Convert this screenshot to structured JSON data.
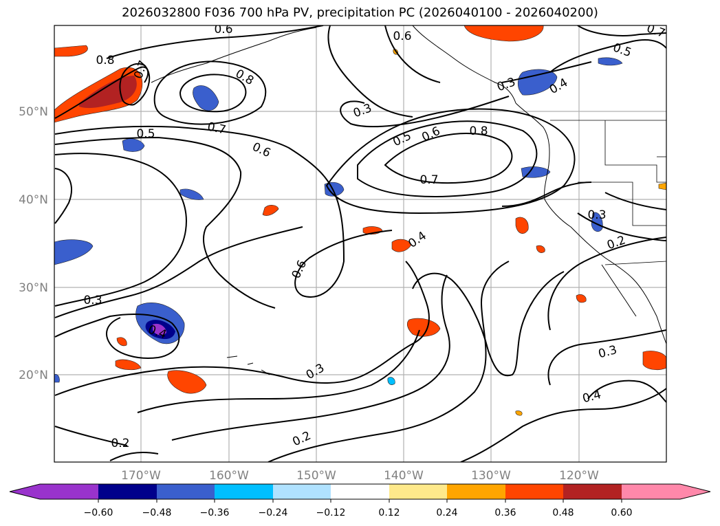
{
  "title": "2026032800 F036 700 hPa PV, precipitation PC (2026040100 - 2026040200)",
  "lat_labels": [
    "50°N",
    "40°N",
    "30°N",
    "20°N"
  ],
  "lon_labels": [
    "170°W",
    "160°W",
    "150°W",
    "140°W",
    "130°W",
    "120°W"
  ],
  "contour_labels": [
    "0.8",
    "0.7",
    "0.6",
    "0.8",
    "0.5",
    "0.7",
    "0.6",
    "0.3",
    "0.5",
    "0.6",
    "0.8",
    "0.7",
    "0.6",
    "0.7",
    "0.5",
    "0.4",
    "0.4",
    "0.6",
    "0.3",
    "0.4",
    "0.3",
    "0.3",
    "0.2",
    "0.2",
    "0.3",
    "0.4",
    "0.2",
    "0.3"
  ],
  "colorbar": {
    "ticks": [
      "−0.60",
      "−0.48",
      "−0.36",
      "−0.24",
      "−0.12",
      "0.12",
      "0.24",
      "0.36",
      "0.48",
      "0.60"
    ],
    "colors": [
      "#9933cc",
      "#00008b",
      "#3a5fcd",
      "#00bfff",
      "#b0e2ff",
      "#ffffff",
      "#fee98b",
      "#ffa500",
      "#ff4500",
      "#b22222",
      "#ff88aa"
    ]
  }
}
